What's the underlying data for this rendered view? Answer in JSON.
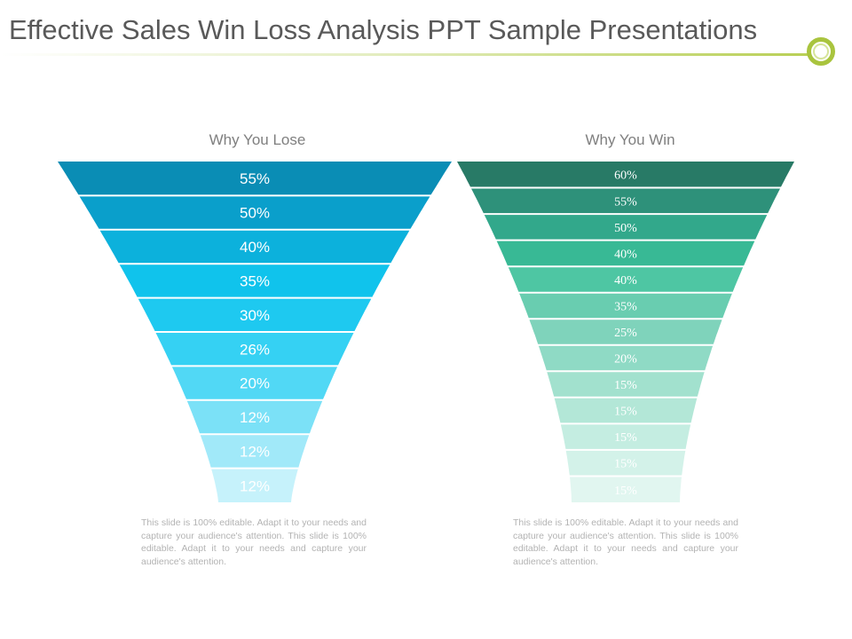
{
  "slide": {
    "title": "Effective Sales Win Loss Analysis PPT Sample Presentations"
  },
  "funnels": {
    "lose": {
      "heading": "Why You Lose",
      "values": [
        "55%",
        "50%",
        "40%",
        "35%",
        "30%",
        "26%",
        "20%",
        "12%",
        "12%",
        "12%"
      ],
      "colors": [
        "#0a8db5",
        "#0a9fcb",
        "#0cb1dc",
        "#10c3ec",
        "#1ec9f0",
        "#35d1f3",
        "#51d8f5",
        "#7be1f7",
        "#a1e9f9",
        "#c6f2fb"
      ],
      "caption": "This slide is 100% editable. Adapt it to your needs and capture your audience's attention. This slide is 100% editable. Adapt it to your needs and capture your audience's attention."
    },
    "win": {
      "heading": "Why You Win",
      "values": [
        "60%",
        "55%",
        "50%",
        "40%",
        "40%",
        "35%",
        "25%",
        "20%",
        "15%",
        "15%",
        "15%",
        "15%",
        "15%"
      ],
      "colors": [
        "#287a66",
        "#2e917a",
        "#32a88b",
        "#38b995",
        "#4ec6a3",
        "#69cdb0",
        "#7fd3bb",
        "#8fdac5",
        "#a2e1ce",
        "#b3e7d7",
        "#c4ede1",
        "#d3f2e9",
        "#e1f6f0"
      ],
      "caption": "This slide is 100% editable. Adapt it to your needs and capture your audience's attention. This slide is 100% editable. Adapt it to your needs and capture your audience's attention."
    }
  }
}
